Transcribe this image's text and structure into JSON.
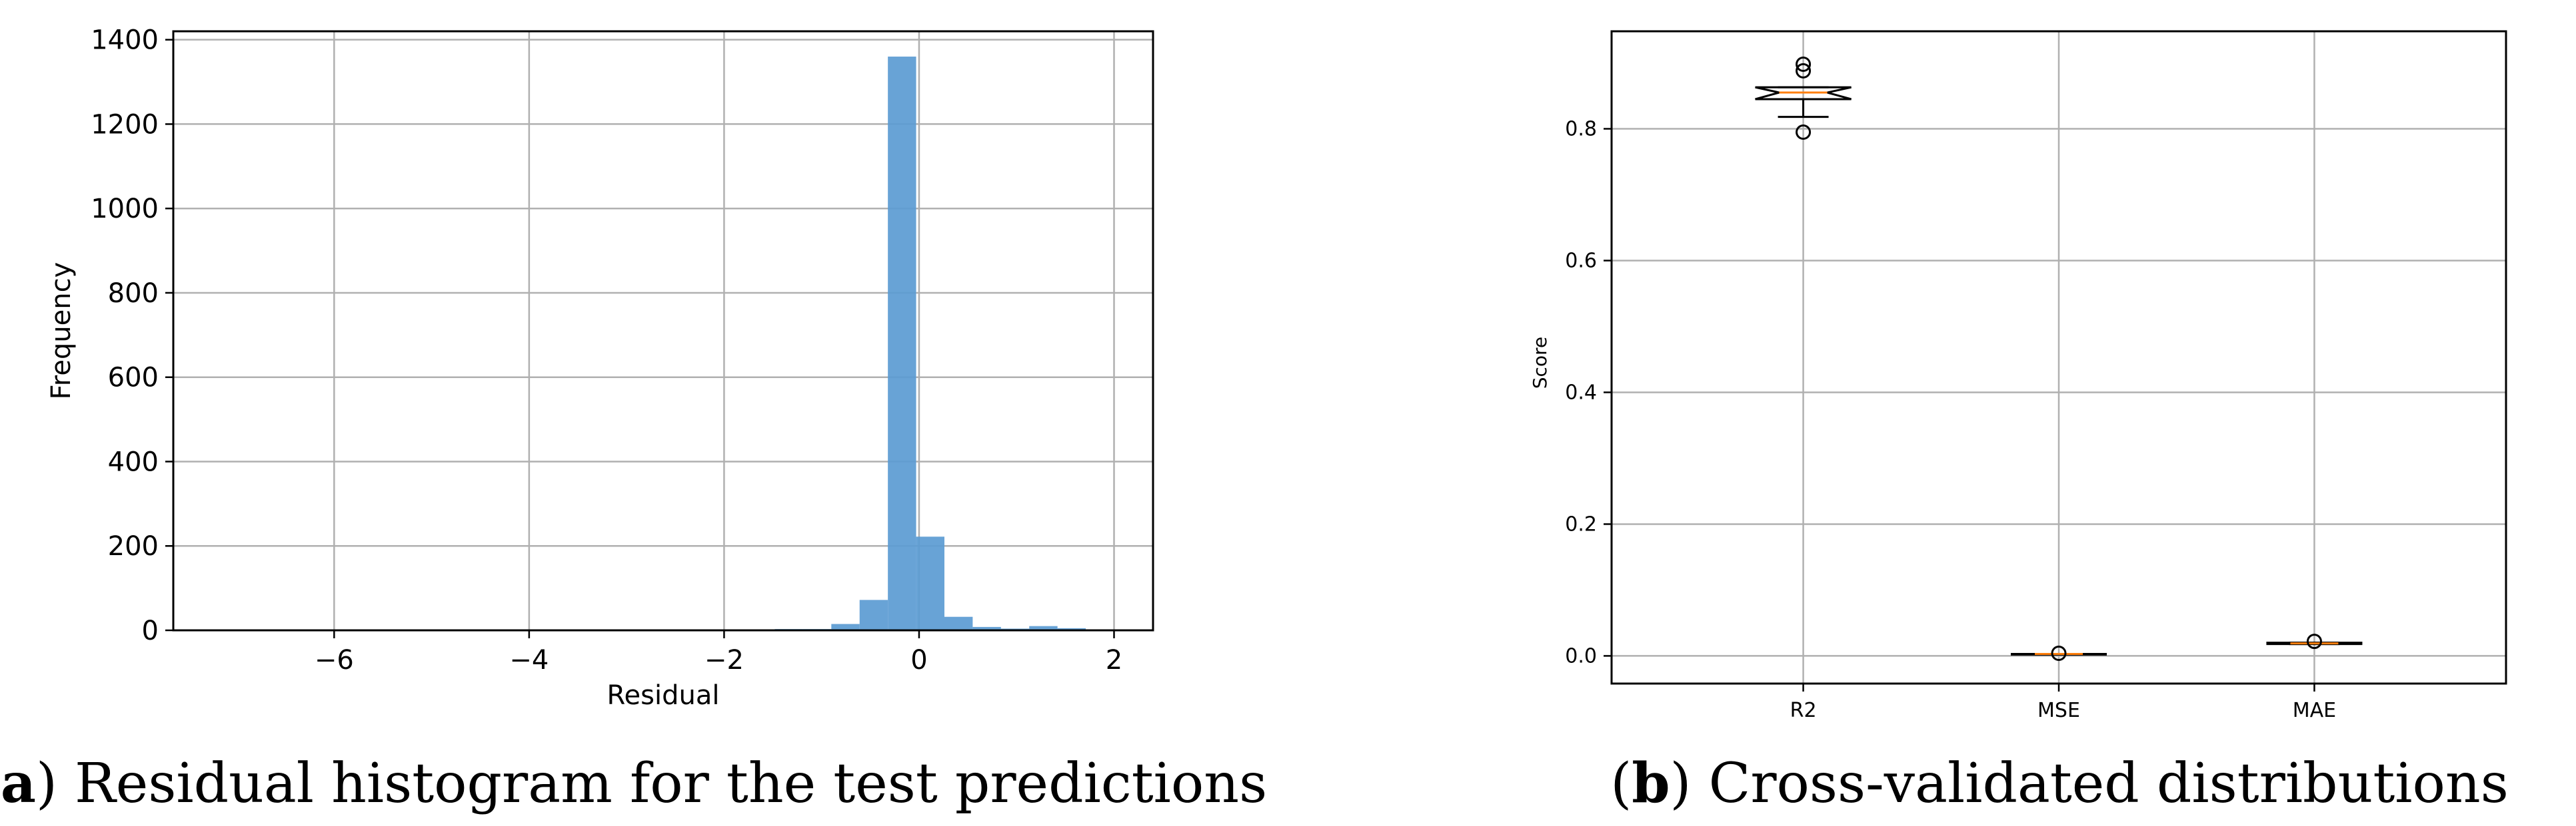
{
  "chart_data": [
    {
      "type": "bar",
      "panel_label": "a",
      "caption": "Residual histogram for the test predictions",
      "xlabel": "Residual",
      "ylabel": "Frequency",
      "xlim": [
        -7.65,
        2.4
      ],
      "ylim": [
        0,
        1420
      ],
      "xticks": [
        -6,
        -4,
        -2,
        0,
        2
      ],
      "xtick_labels": [
        "−6",
        "−4",
        "−2",
        "0",
        "2"
      ],
      "yticks": [
        0,
        200,
        400,
        600,
        800,
        1000,
        1200,
        1400
      ],
      "ytick_labels": [
        "0",
        "200",
        "400",
        "600",
        "800",
        "1000",
        "1200",
        "1400"
      ],
      "grid": true,
      "color": "#5b9bd2",
      "bins": [
        {
          "x0": -1.48,
          "x1": -1.19,
          "value": 3
        },
        {
          "x0": -1.19,
          "x1": -0.9,
          "value": 3
        },
        {
          "x0": -0.9,
          "x1": -0.61,
          "value": 15
        },
        {
          "x0": -0.61,
          "x1": -0.32,
          "value": 72
        },
        {
          "x0": -0.32,
          "x1": -0.03,
          "value": 1360
        },
        {
          "x0": -0.03,
          "x1": 0.26,
          "value": 222
        },
        {
          "x0": 0.26,
          "x1": 0.55,
          "value": 32
        },
        {
          "x0": 0.55,
          "x1": 0.84,
          "value": 8
        },
        {
          "x0": 0.84,
          "x1": 1.13,
          "value": 4
        },
        {
          "x0": 1.13,
          "x1": 1.42,
          "value": 10
        },
        {
          "x0": 1.42,
          "x1": 1.71,
          "value": 5
        }
      ]
    },
    {
      "type": "box",
      "panel_label": "b",
      "caption": "Cross-validated distributions",
      "xlabel": "",
      "ylabel": "Score",
      "ylim": [
        -0.042,
        0.948
      ],
      "yticks": [
        0.0,
        0.2,
        0.4,
        0.6,
        0.8
      ],
      "ytick_labels": [
        "0.0",
        "0.2",
        "0.4",
        "0.6",
        "0.8"
      ],
      "grid": true,
      "categories": [
        "R2",
        "MSE",
        "MAE"
      ],
      "boxes": [
        {
          "name": "R2",
          "whisker_low": 0.818,
          "q1": 0.845,
          "median": 0.855,
          "q3": 0.863,
          "whisker_high": 0.863,
          "notch": [
            0.845,
            0.863
          ],
          "outliers": [
            0.795,
            0.888,
            0.898
          ]
        },
        {
          "name": "MSE",
          "whisker_low": 0.002,
          "q1": 0.002,
          "median": 0.003,
          "q3": 0.003,
          "whisker_high": 0.003,
          "notch": [
            0.002,
            0.003
          ],
          "outliers": [
            0.004
          ]
        },
        {
          "name": "MAE",
          "whisker_low": 0.018,
          "q1": 0.018,
          "median": 0.019,
          "q3": 0.02,
          "whisker_high": 0.02,
          "notch": [
            0.018,
            0.02
          ],
          "outliers": [
            0.022
          ]
        }
      ]
    }
  ]
}
